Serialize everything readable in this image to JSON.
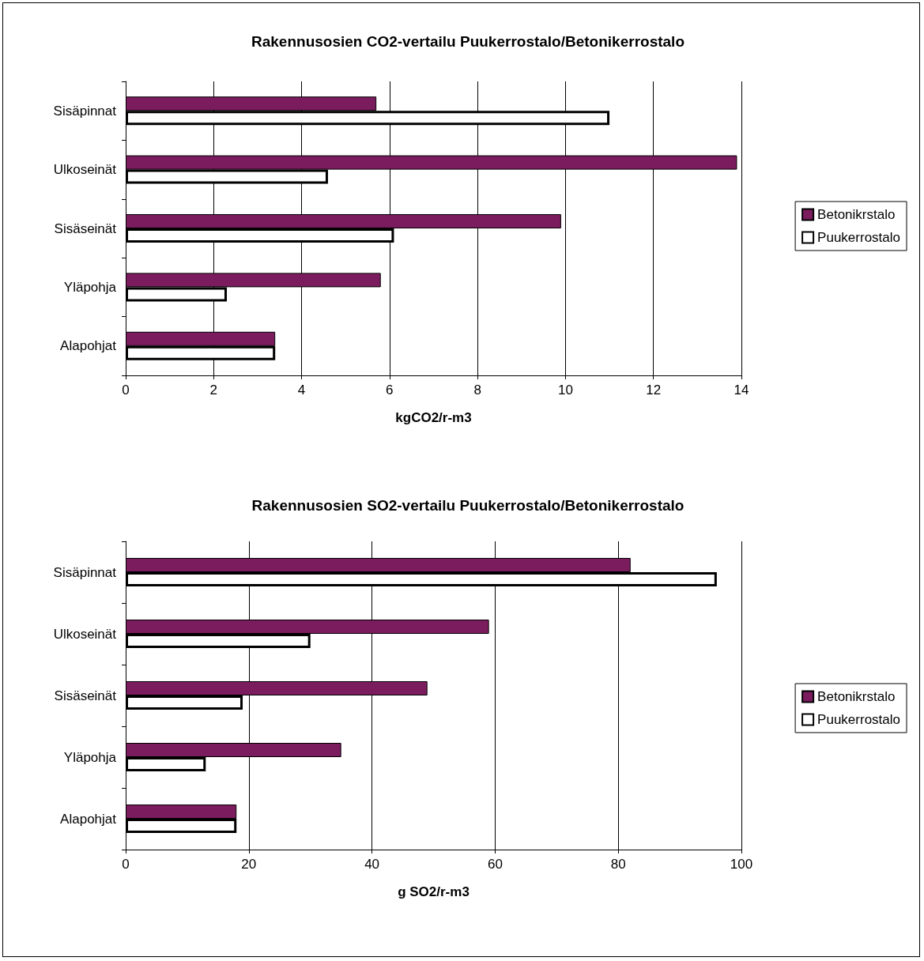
{
  "chart_data": [
    {
      "type": "bar",
      "orientation": "horizontal",
      "title": "Rakennusosien CO2-vertailu Puukerrostalo/Betonikerrostalo",
      "xlabel": "kgCO2/r-m3",
      "categories": [
        "Sisäpinnat",
        "Ulkoseinät",
        "Sisäseinät",
        "Yläpohja",
        "Alapohjat"
      ],
      "series": [
        {
          "name": "Betonikrstalo",
          "color": "#7b1c5e",
          "values": [
            5.7,
            13.9,
            9.9,
            5.8,
            3.4
          ]
        },
        {
          "name": "Puukerrostalo",
          "color": "#ffffff",
          "values": [
            11.0,
            4.6,
            6.1,
            2.3,
            3.4
          ]
        }
      ],
      "xlim": [
        0,
        14
      ],
      "xticks": [
        0,
        2,
        4,
        6,
        8,
        10,
        12,
        14
      ],
      "grid": "x",
      "legend": "right"
    },
    {
      "type": "bar",
      "orientation": "horizontal",
      "title": "Rakennusosien SO2-vertailu Puukerrostalo/Betonikerrostalo",
      "xlabel": "g SO2/r-m3",
      "categories": [
        "Sisäpinnat",
        "Ulkoseinät",
        "Sisäseinät",
        "Yläpohja",
        "Alapohjat"
      ],
      "series": [
        {
          "name": "Betonikrstalo",
          "color": "#7b1c5e",
          "values": [
            82,
            59,
            49,
            35,
            18
          ]
        },
        {
          "name": "Puukerrostalo",
          "color": "#ffffff",
          "values": [
            96,
            30,
            19,
            13,
            18
          ]
        }
      ],
      "xlim": [
        0,
        100
      ],
      "xticks": [
        0,
        20,
        40,
        60,
        80,
        100
      ],
      "grid": "x",
      "legend": "right"
    }
  ]
}
